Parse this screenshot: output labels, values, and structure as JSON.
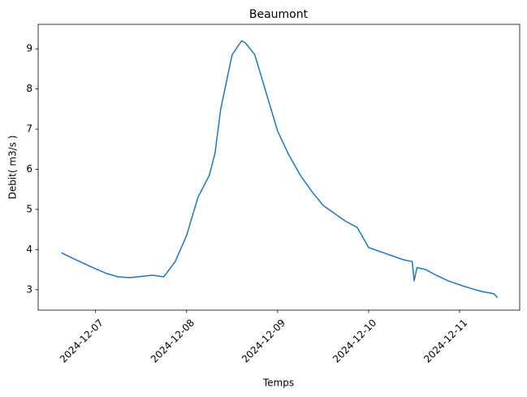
{
  "chart_data": {
    "type": "line",
    "title": "Beaumont",
    "x_label": "Temps",
    "y_label": "Debit( m3/s )",
    "x": [
      "2024-12-06 15:00",
      "2024-12-06 18:00",
      "2024-12-06 21:00",
      "2024-12-07 00:00",
      "2024-12-07 03:00",
      "2024-12-07 06:00",
      "2024-12-07 09:00",
      "2024-12-07 12:00",
      "2024-12-07 15:00",
      "2024-12-07 18:00",
      "2024-12-07 21:00",
      "2024-12-08 00:00",
      "2024-12-08 03:00",
      "2024-12-08 06:00",
      "2024-12-08 07:30",
      "2024-12-08 09:00",
      "2024-12-08 12:00",
      "2024-12-08 14:30",
      "2024-12-08 15:30",
      "2024-12-08 18:00",
      "2024-12-08 21:00",
      "2024-12-09 00:00",
      "2024-12-09 03:00",
      "2024-12-09 06:00",
      "2024-12-09 09:00",
      "2024-12-09 12:00",
      "2024-12-09 15:00",
      "2024-12-09 18:00",
      "2024-12-09 21:00",
      "2024-12-10 00:00",
      "2024-12-10 03:00",
      "2024-12-10 06:00",
      "2024-12-10 09:00",
      "2024-12-10 11:30",
      "2024-12-10 12:00",
      "2024-12-10 12:45",
      "2024-12-10 15:00",
      "2024-12-10 18:00",
      "2024-12-10 21:00",
      "2024-12-11 00:00",
      "2024-12-11 03:00",
      "2024-12-11 06:00",
      "2024-12-11 09:00",
      "2024-12-11 10:00"
    ],
    "series": [
      {
        "name": "Debit",
        "color": "#1f77b4",
        "values": [
          3.92,
          3.78,
          3.65,
          3.52,
          3.4,
          3.32,
          3.3,
          3.33,
          3.36,
          3.32,
          3.7,
          4.35,
          5.3,
          5.85,
          6.4,
          7.5,
          8.85,
          9.2,
          9.15,
          8.85,
          7.9,
          6.95,
          6.35,
          5.85,
          5.45,
          5.1,
          4.9,
          4.7,
          4.55,
          4.05,
          3.95,
          3.85,
          3.75,
          3.7,
          3.22,
          3.55,
          3.5,
          3.35,
          3.22,
          3.12,
          3.03,
          2.95,
          2.9,
          2.8
        ]
      }
    ],
    "xlim": [
      "2024-12-06 08:52",
      "2024-12-11 15:50"
    ],
    "xticks": [
      "2024-12-07",
      "2024-12-08",
      "2024-12-09",
      "2024-12-10",
      "2024-12-11"
    ],
    "ylim": [
      2.49,
      9.61
    ],
    "yticks": [
      3,
      4,
      5,
      6,
      7,
      8,
      9
    ],
    "grid": false
  }
}
